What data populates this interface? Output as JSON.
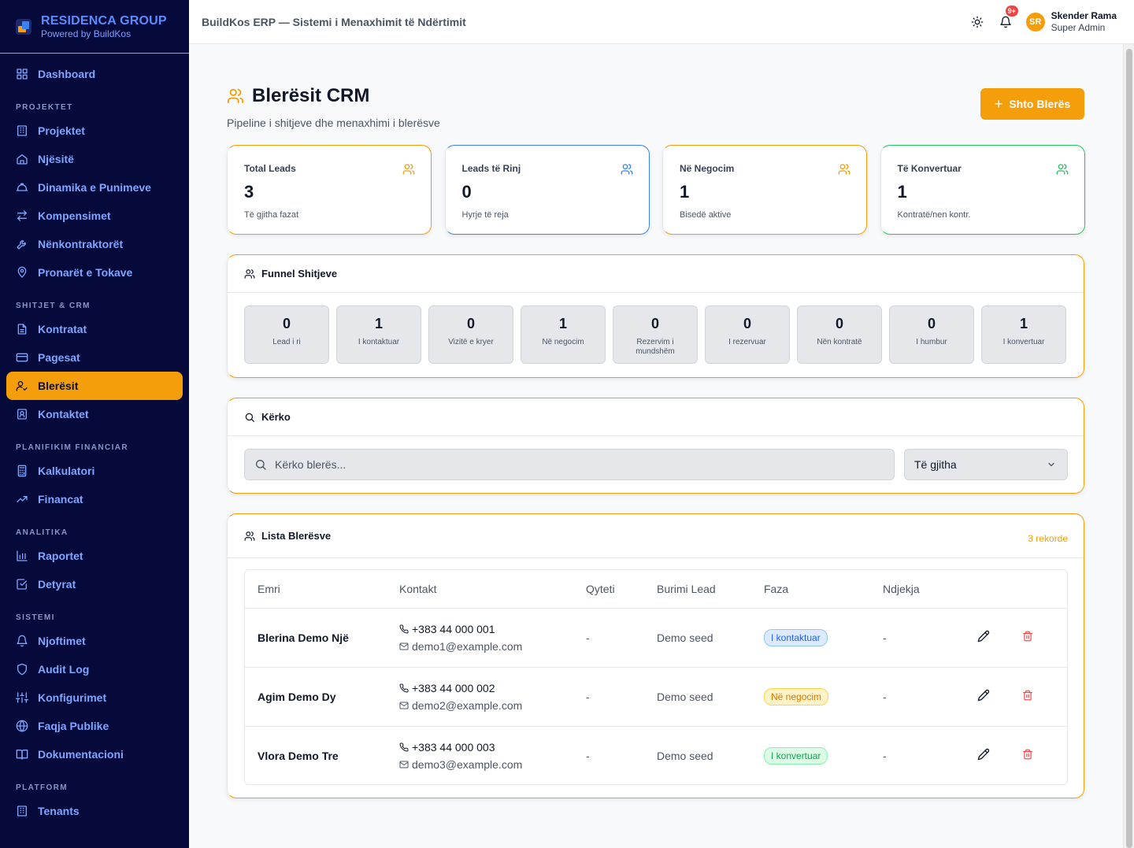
{
  "brand": {
    "title": "RESIDENCA GROUP",
    "subtitle": "Powered by BuildKos"
  },
  "sidebar": {
    "items": [
      {
        "label": "Dashboard",
        "icon": "grid-icon"
      },
      {
        "section": "PROJEKTET"
      },
      {
        "label": "Projektet",
        "icon": "building-icon"
      },
      {
        "label": "Njësitë",
        "icon": "home-icon"
      },
      {
        "label": "Dinamika e Punimeve",
        "icon": "hardhat-icon"
      },
      {
        "label": "Kompensimet",
        "icon": "arrows-icon"
      },
      {
        "label": "Nënkontraktorët",
        "icon": "wrench-icon"
      },
      {
        "label": "Pronarët e Tokave",
        "icon": "map-pin-icon"
      },
      {
        "section": "SHITJET & CRM"
      },
      {
        "label": "Kontratat",
        "icon": "document-icon"
      },
      {
        "label": "Pagesat",
        "icon": "credit-card-icon"
      },
      {
        "label": "Blerësit",
        "icon": "user-check-icon",
        "active": true
      },
      {
        "label": "Kontaktet",
        "icon": "contact-icon"
      },
      {
        "section": "PLANIFIKIM FINANCIAR"
      },
      {
        "label": "Kalkulatori",
        "icon": "calculator-icon"
      },
      {
        "label": "Financat",
        "icon": "trending-up-icon"
      },
      {
        "section": "ANALITIKA"
      },
      {
        "label": "Raportet",
        "icon": "bar-chart-icon"
      },
      {
        "label": "Detyrat",
        "icon": "check-square-icon"
      },
      {
        "section": "SISTEMI"
      },
      {
        "label": "Njoftimet",
        "icon": "bell-icon"
      },
      {
        "label": "Audit Log",
        "icon": "shield-icon"
      },
      {
        "label": "Konfigurimet",
        "icon": "sliders-icon"
      },
      {
        "label": "Faqja Publike",
        "icon": "globe-icon"
      },
      {
        "label": "Dokumentacioni",
        "icon": "book-icon"
      },
      {
        "section": "PLATFORM"
      },
      {
        "label": "Tenants",
        "icon": "building-icon"
      }
    ]
  },
  "topbar": {
    "title": "BuildKos ERP — Sistemi i Menaxhimit të Ndërtimit",
    "notification_badge": "9+",
    "user": {
      "initials": "SR",
      "name": "Skender Rama",
      "role": "Super Admin"
    }
  },
  "page": {
    "title": "Blerësit CRM",
    "subtitle": "Pipeline i shitjeve dhe menaxhimi i blerësve",
    "add_button": "Shto Blerës"
  },
  "stats": [
    {
      "label": "Total Leads",
      "value": "3",
      "sub": "Të gjitha fazat",
      "color": "#f59e0b"
    },
    {
      "label": "Leads të Rinj",
      "value": "0",
      "sub": "Hyrje të reja",
      "color": "#3b82f6"
    },
    {
      "label": "Në Negocim",
      "value": "1",
      "sub": "Bisedë aktive",
      "color": "#f59e0b"
    },
    {
      "label": "Të Konvertuar",
      "value": "1",
      "sub": "Kontratë/nen kontr.",
      "color": "#22c55e"
    }
  ],
  "funnel": {
    "title": "Funnel Shitjeve",
    "stages": [
      {
        "value": "0",
        "label": "Lead i ri"
      },
      {
        "value": "1",
        "label": "I kontaktuar"
      },
      {
        "value": "0",
        "label": "Vizitë e kryer"
      },
      {
        "value": "1",
        "label": "Në negocim"
      },
      {
        "value": "0",
        "label": "Rezervim i mundshëm"
      },
      {
        "value": "0",
        "label": "I rezervuar"
      },
      {
        "value": "0",
        "label": "Nën kontratë"
      },
      {
        "value": "0",
        "label": "I humbur"
      },
      {
        "value": "1",
        "label": "I konvertuar"
      }
    ]
  },
  "search": {
    "title": "Kërko",
    "placeholder": "Kërko blerës...",
    "filter_value": "Të gjitha"
  },
  "list": {
    "title": "Lista Blerësve",
    "count": "3 rekorde",
    "columns": [
      "Emri",
      "Kontakt",
      "Qyteti",
      "Burimi Lead",
      "Faza",
      "Ndjekja"
    ],
    "rows": [
      {
        "name": "Blerina Demo Një",
        "phone": "+383 44 000 001",
        "email": "demo1@example.com",
        "city": "-",
        "source": "Demo seed",
        "stage": "I kontaktuar",
        "stage_color": "blue",
        "followup": "-"
      },
      {
        "name": "Agim Demo Dy",
        "phone": "+383 44 000 002",
        "email": "demo2@example.com",
        "city": "-",
        "source": "Demo seed",
        "stage": "Në negocim",
        "stage_color": "amber",
        "followup": "-"
      },
      {
        "name": "Vlora Demo Tre",
        "phone": "+383 44 000 003",
        "email": "demo3@example.com",
        "city": "-",
        "source": "Demo seed",
        "stage": "I konvertuar",
        "stage_color": "green",
        "followup": "-"
      }
    ]
  }
}
